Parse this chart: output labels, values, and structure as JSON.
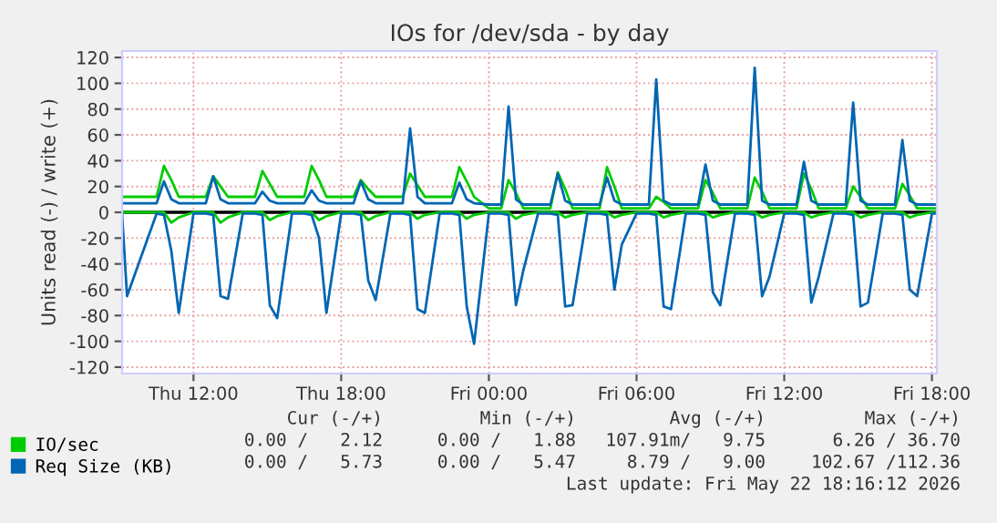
{
  "chart_data": {
    "type": "line",
    "title": "IOs for /dev/sda - by day",
    "ylabel": "Units read (-) / write (+)",
    "x": [
      "2026-05-21T09:06",
      "2026-05-21T09:18",
      "2026-05-21T10:30",
      "2026-05-21T10:48",
      "2026-05-21T11:06",
      "2026-05-21T11:24",
      "2026-05-21T12:00",
      "2026-05-21T12:30",
      "2026-05-21T12:48",
      "2026-05-21T13:06",
      "2026-05-21T13:24",
      "2026-05-21T14:00",
      "2026-05-21T14:30",
      "2026-05-21T14:48",
      "2026-05-21T15:06",
      "2026-05-21T15:24",
      "2026-05-21T16:00",
      "2026-05-21T16:30",
      "2026-05-21T16:48",
      "2026-05-21T17:06",
      "2026-05-21T17:24",
      "2026-05-21T18:00",
      "2026-05-21T18:30",
      "2026-05-21T18:48",
      "2026-05-21T19:06",
      "2026-05-21T19:24",
      "2026-05-21T20:00",
      "2026-05-21T20:30",
      "2026-05-21T20:48",
      "2026-05-21T21:06",
      "2026-05-21T21:24",
      "2026-05-21T22:00",
      "2026-05-21T22:30",
      "2026-05-21T22:48",
      "2026-05-21T23:06",
      "2026-05-21T23:24",
      "2026-05-22T00:00",
      "2026-05-22T00:30",
      "2026-05-22T00:48",
      "2026-05-22T01:06",
      "2026-05-22T01:24",
      "2026-05-22T02:00",
      "2026-05-22T02:30",
      "2026-05-22T02:48",
      "2026-05-22T03:06",
      "2026-05-22T03:24",
      "2026-05-22T04:00",
      "2026-05-22T04:30",
      "2026-05-22T04:48",
      "2026-05-22T05:06",
      "2026-05-22T05:24",
      "2026-05-22T06:00",
      "2026-05-22T06:30",
      "2026-05-22T06:48",
      "2026-05-22T07:06",
      "2026-05-22T07:24",
      "2026-05-22T08:00",
      "2026-05-22T08:30",
      "2026-05-22T08:48",
      "2026-05-22T09:06",
      "2026-05-22T09:24",
      "2026-05-22T10:00",
      "2026-05-22T10:30",
      "2026-05-22T10:48",
      "2026-05-22T11:06",
      "2026-05-22T11:24",
      "2026-05-22T12:00",
      "2026-05-22T12:30",
      "2026-05-22T12:48",
      "2026-05-22T13:06",
      "2026-05-22T13:24",
      "2026-05-22T14:00",
      "2026-05-22T14:30",
      "2026-05-22T14:48",
      "2026-05-22T15:06",
      "2026-05-22T15:24",
      "2026-05-22T16:00",
      "2026-05-22T16:30",
      "2026-05-22T16:48",
      "2026-05-22T17:06",
      "2026-05-22T17:24",
      "2026-05-22T18:00",
      "2026-05-22T18:12"
    ],
    "series": [
      {
        "name": "IO/sec",
        "color": "#00cc00",
        "values": [
          12,
          12,
          12,
          36,
          25,
          12,
          12,
          12,
          28,
          20,
          12,
          12,
          12,
          32,
          22,
          12,
          12,
          12,
          36,
          25,
          12,
          12,
          12,
          25,
          18,
          12,
          12,
          12,
          30,
          21,
          12,
          12,
          12,
          35,
          24,
          12,
          3,
          3,
          25,
          15,
          3,
          3,
          3,
          31,
          18,
          3,
          3,
          3,
          35,
          20,
          3,
          3,
          3,
          12,
          8,
          3,
          3,
          3,
          25,
          15,
          3,
          3,
          3,
          27,
          16,
          3,
          3,
          3,
          30,
          18,
          3,
          3,
          3,
          20,
          12,
          3,
          3,
          3,
          22,
          13,
          3,
          3,
          3
        ]
      },
      {
        "color": "#00cc00",
        "values": [
          0,
          0,
          0,
          0,
          -8,
          -4,
          0,
          0,
          0,
          -8,
          -4,
          0,
          0,
          0,
          -6,
          -3,
          0,
          0,
          0,
          -6,
          -3,
          0,
          0,
          0,
          -6,
          -3,
          0,
          0,
          0,
          -5,
          -2,
          0,
          0,
          0,
          -5,
          -2,
          0,
          0,
          0,
          -5,
          -2,
          0,
          0,
          0,
          -4,
          -2,
          0,
          0,
          0,
          -4,
          -2,
          0,
          0,
          0,
          -4,
          -2,
          0,
          0,
          0,
          -4,
          -2,
          0,
          0,
          0,
          -4,
          -2,
          0,
          0,
          0,
          -4,
          -2,
          0,
          0,
          0,
          -4,
          -2,
          0,
          0,
          0,
          -4,
          -2,
          0,
          0
        ]
      },
      {
        "name": "Req Size (KB)",
        "color": "#0066b3",
        "values": [
          7,
          7,
          7,
          24,
          10,
          7,
          7,
          7,
          28,
          10,
          7,
          7,
          7,
          16,
          9,
          7,
          7,
          7,
          17,
          9,
          7,
          7,
          7,
          24,
          10,
          7,
          7,
          7,
          65,
          12,
          7,
          7,
          7,
          23,
          10,
          7,
          6,
          6,
          82,
          10,
          6,
          6,
          6,
          30,
          9,
          6,
          6,
          6,
          27,
          9,
          6,
          6,
          6,
          103,
          9,
          6,
          6,
          6,
          37,
          9,
          6,
          6,
          6,
          112,
          9,
          6,
          6,
          6,
          39,
          9,
          6,
          6,
          6,
          85,
          9,
          6,
          6,
          6,
          56,
          9,
          6,
          6,
          6
        ]
      },
      {
        "color": "#0066b3",
        "values": [
          -2,
          -65,
          -1,
          -2,
          -30,
          -78,
          -1,
          -1,
          -2,
          -65,
          -67,
          -1,
          -1,
          -2,
          -72,
          -82,
          -1,
          -1,
          -2,
          -20,
          -78,
          -1,
          -1,
          -2,
          -53,
          -68,
          -1,
          -1,
          -2,
          -75,
          -78,
          -1,
          -1,
          -2,
          -73,
          -102,
          -1,
          -1,
          -2,
          -72,
          -45,
          -1,
          -1,
          -2,
          -73,
          -72,
          -1,
          -1,
          -2,
          -60,
          -25,
          -1,
          -1,
          -2,
          -73,
          -75,
          -1,
          -1,
          -2,
          -62,
          -72,
          -1,
          -1,
          -2,
          -65,
          -50,
          -1,
          -1,
          -2,
          -70,
          -50,
          -1,
          -1,
          -2,
          -73,
          -70,
          -1,
          -1,
          -2,
          -60,
          -65,
          -1,
          -1
        ]
      }
    ],
    "xlim": [
      "2026-05-21T09:06",
      "2026-05-22T18:12"
    ],
    "xticks": [
      {
        "value": "2026-05-21T12:00",
        "label": "Thu 12:00"
      },
      {
        "value": "2026-05-21T18:00",
        "label": "Thu 18:00"
      },
      {
        "value": "2026-05-22T00:00",
        "label": "Fri 00:00"
      },
      {
        "value": "2026-05-22T06:00",
        "label": "Fri 06:00"
      },
      {
        "value": "2026-05-22T12:00",
        "label": "Fri 12:00"
      },
      {
        "value": "2026-05-22T18:00",
        "label": "Fri 18:00"
      }
    ],
    "ylim": [
      -125,
      125
    ],
    "yticks": [
      -120,
      -100,
      -80,
      -60,
      -40,
      -20,
      0,
      20,
      40,
      60,
      80,
      100,
      120
    ],
    "ref_lines": [
      {
        "axis": "y",
        "value": 0,
        "color": "#000000"
      }
    ],
    "grid": true,
    "legend": "bottom left",
    "marker": "none",
    "line_style": "solid",
    "annotations": [
      "Cur (-/+)",
      "Min (-/+)",
      "Avg (-/+)",
      "Max (-/+)",
      "0.00 /   2.12",
      "0.00 /   1.88",
      "107.91m/   9.75",
      "6.26 / 36.70",
      "0.00 /   5.73",
      "0.00 /   5.47",
      "8.79 /   9.00",
      "102.67 /112.36",
      "Last update: Fri May 22 18:16:12 2026"
    ]
  }
}
